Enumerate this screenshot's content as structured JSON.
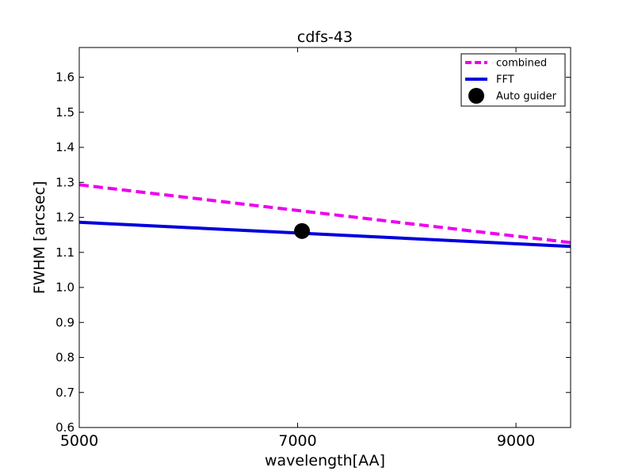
{
  "chart_data": {
    "type": "line",
    "title": "cdfs-43",
    "xlabel": "wavelength[AA]",
    "ylabel": "FWHM [arcsec]",
    "xlim": [
      5000,
      9500
    ],
    "ylim": [
      0.6,
      1.685
    ],
    "xticks": [
      5000,
      7000,
      9000
    ],
    "xtick_labels": [
      "5000",
      "7000",
      "9000"
    ],
    "yticks": [
      0.6,
      0.7,
      0.8,
      0.9,
      1.0,
      1.1,
      1.2,
      1.3,
      1.4,
      1.5,
      1.6
    ],
    "ytick_labels": [
      "0.6",
      "0.7",
      "0.8",
      "0.9",
      "1.0",
      "1.1",
      "1.2",
      "1.3",
      "1.4",
      "1.5",
      "1.6"
    ],
    "grid": false,
    "legend_position": "top-right",
    "series": [
      {
        "name": "combined",
        "style": "dashed",
        "color": "#ee00ee",
        "x": [
          5000,
          9500
        ],
        "y": [
          1.293,
          1.128
        ]
      },
      {
        "name": "FFT",
        "style": "solid",
        "color": "#0000dd",
        "x": [
          5000,
          9500
        ],
        "y": [
          1.186,
          1.117
        ]
      },
      {
        "name": "Auto guider",
        "style": "marker",
        "color": "#000000",
        "x": [
          7040
        ],
        "y": [
          1.161
        ]
      }
    ]
  }
}
